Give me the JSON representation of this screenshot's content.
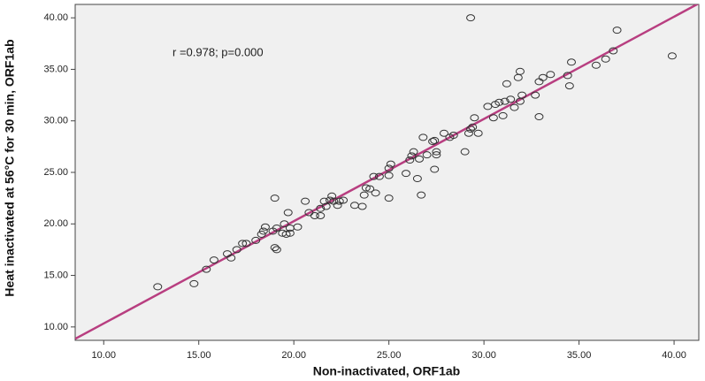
{
  "chart_data": {
    "type": "scatter",
    "annotation": "r =0.978; p=0.000",
    "x_label": "Non-inactivated, ORF1ab",
    "y_label": "Heat inactivated at 56°C for 30 min, ORF1ab",
    "xlim": [
      8.5,
      41.3
    ],
    "ylim": [
      8.7,
      41.3
    ],
    "xticks": [
      {
        "value": 10,
        "label": "10.00"
      },
      {
        "value": 15,
        "label": "15.00"
      },
      {
        "value": 20,
        "label": "20.00"
      },
      {
        "value": 25,
        "label": "25.00"
      },
      {
        "value": 30,
        "label": "30.00"
      },
      {
        "value": 35,
        "label": "35.00"
      },
      {
        "value": 40,
        "label": "40.00"
      }
    ],
    "yticks": [
      {
        "value": 10,
        "label": "10.00"
      },
      {
        "value": 15,
        "label": "15.00"
      },
      {
        "value": 20,
        "label": "20.00"
      },
      {
        "value": 25,
        "label": "25.00"
      },
      {
        "value": 30,
        "label": "30.00"
      },
      {
        "value": 35,
        "label": "35.00"
      },
      {
        "value": 40,
        "label": "40.00"
      }
    ],
    "point_color": "#333333",
    "plot_background": "#f0f0f0",
    "x": [
      12.84,
      14.75,
      15.4,
      15.8,
      16.5,
      16.7,
      17.0,
      17.3,
      17.5,
      18.0,
      18.3,
      18.4,
      18.5,
      18.9,
      19.0,
      19.1,
      19.0,
      19.1,
      19.4,
      19.5,
      19.6,
      19.7,
      19.8,
      19.8,
      20.2,
      20.6,
      20.8,
      21.1,
      21.4,
      21.4,
      21.6,
      21.7,
      21.9,
      22.0,
      22.1,
      22.3,
      22.4,
      22.6,
      23.2,
      23.6,
      23.7,
      23.8,
      24.0,
      24.3,
      24.2,
      24.5,
      25.0,
      25.0,
      25.0,
      25.1,
      25.9,
      26.1,
      26.2,
      26.3,
      26.5,
      26.6,
      26.7,
      26.8,
      27.0,
      27.3,
      27.4,
      27.4,
      27.5,
      27.5,
      27.9,
      28.2,
      28.4,
      29.0,
      29.2,
      29.3,
      29.4,
      29.5,
      29.3,
      29.7,
      30.2,
      30.5,
      30.6,
      30.8,
      31.0,
      31.1,
      31.2,
      31.4,
      31.6,
      31.9,
      31.8,
      31.9,
      32.0,
      32.7,
      32.9,
      32.9,
      33.1,
      33.5,
      34.4,
      34.5,
      34.6,
      35.9,
      36.4,
      36.8,
      37.0,
      39.9
    ],
    "values": [
      13.9,
      14.2,
      15.6,
      16.5,
      17.1,
      16.7,
      17.5,
      18.1,
      18.1,
      18.4,
      19.0,
      19.3,
      19.7,
      19.3,
      17.7,
      17.5,
      22.5,
      19.6,
      19.1,
      20.0,
      19.0,
      21.1,
      19.6,
      19.1,
      19.7,
      22.2,
      21.1,
      20.8,
      20.8,
      21.5,
      22.2,
      21.7,
      22.3,
      22.7,
      22.2,
      21.8,
      22.2,
      22.3,
      21.8,
      21.7,
      22.8,
      23.5,
      23.4,
      23.0,
      24.6,
      24.6,
      22.5,
      24.7,
      25.4,
      25.8,
      24.9,
      26.2,
      26.6,
      27.0,
      24.4,
      26.3,
      22.8,
      28.4,
      26.7,
      28.0,
      28.1,
      25.3,
      27.0,
      26.7,
      28.8,
      28.4,
      28.6,
      27.0,
      28.8,
      29.2,
      29.4,
      30.3,
      40.0,
      28.8,
      31.4,
      30.3,
      31.6,
      31.8,
      30.5,
      31.9,
      33.6,
      32.1,
      31.3,
      31.9,
      34.2,
      34.8,
      32.5,
      32.5,
      33.8,
      30.4,
      34.2,
      34.5,
      34.4,
      33.4,
      35.7,
      35.4,
      36.0,
      36.8,
      38.8,
      36.3
    ],
    "fit_line": {
      "color": "#b83e80",
      "x": [
        8.5,
        41.3
      ],
      "values": [
        8.85,
        41.4
      ]
    }
  }
}
